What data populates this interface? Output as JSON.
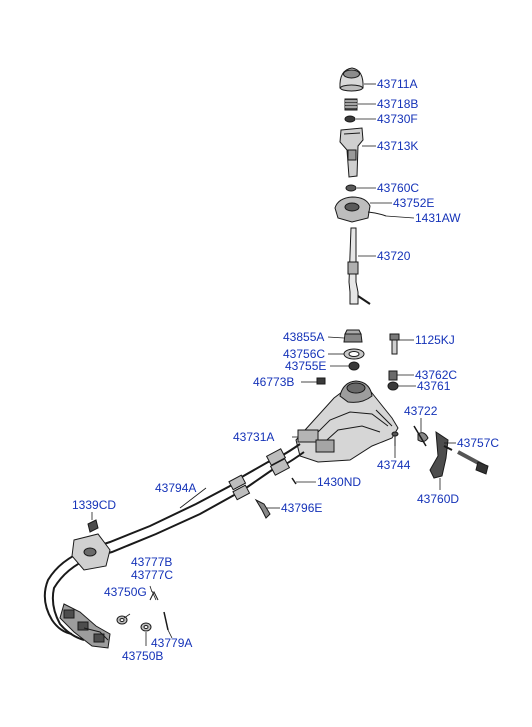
{
  "diagram": {
    "label_color": "#1533b8",
    "part_numbers": {
      "p43711A": "43711A",
      "p43718B": "43718B",
      "p43730F": "43730F",
      "p43713K": "43713K",
      "p43760C": "43760C",
      "p43752E": "43752E",
      "p1431AW": "1431AW",
      "p43720": "43720",
      "p43855A": "43855A",
      "p1125KJ": "1125KJ",
      "p43756C": "43756C",
      "p43755E": "43755E",
      "p43762C": "43762C",
      "p46773B": "46773B",
      "p43761": "43761",
      "p43722": "43722",
      "p43731A": "43731A",
      "p43757C": "43757C",
      "p43744": "43744",
      "p1430ND": "1430ND",
      "p43794A": "43794A",
      "p43760D": "43760D",
      "p1339CD": "1339CD",
      "p43796E": "43796E",
      "p43777B": "43777B",
      "p43777C": "43777C",
      "p43750G": "43750G",
      "p43779A": "43779A",
      "p43750B": "43750B"
    }
  }
}
